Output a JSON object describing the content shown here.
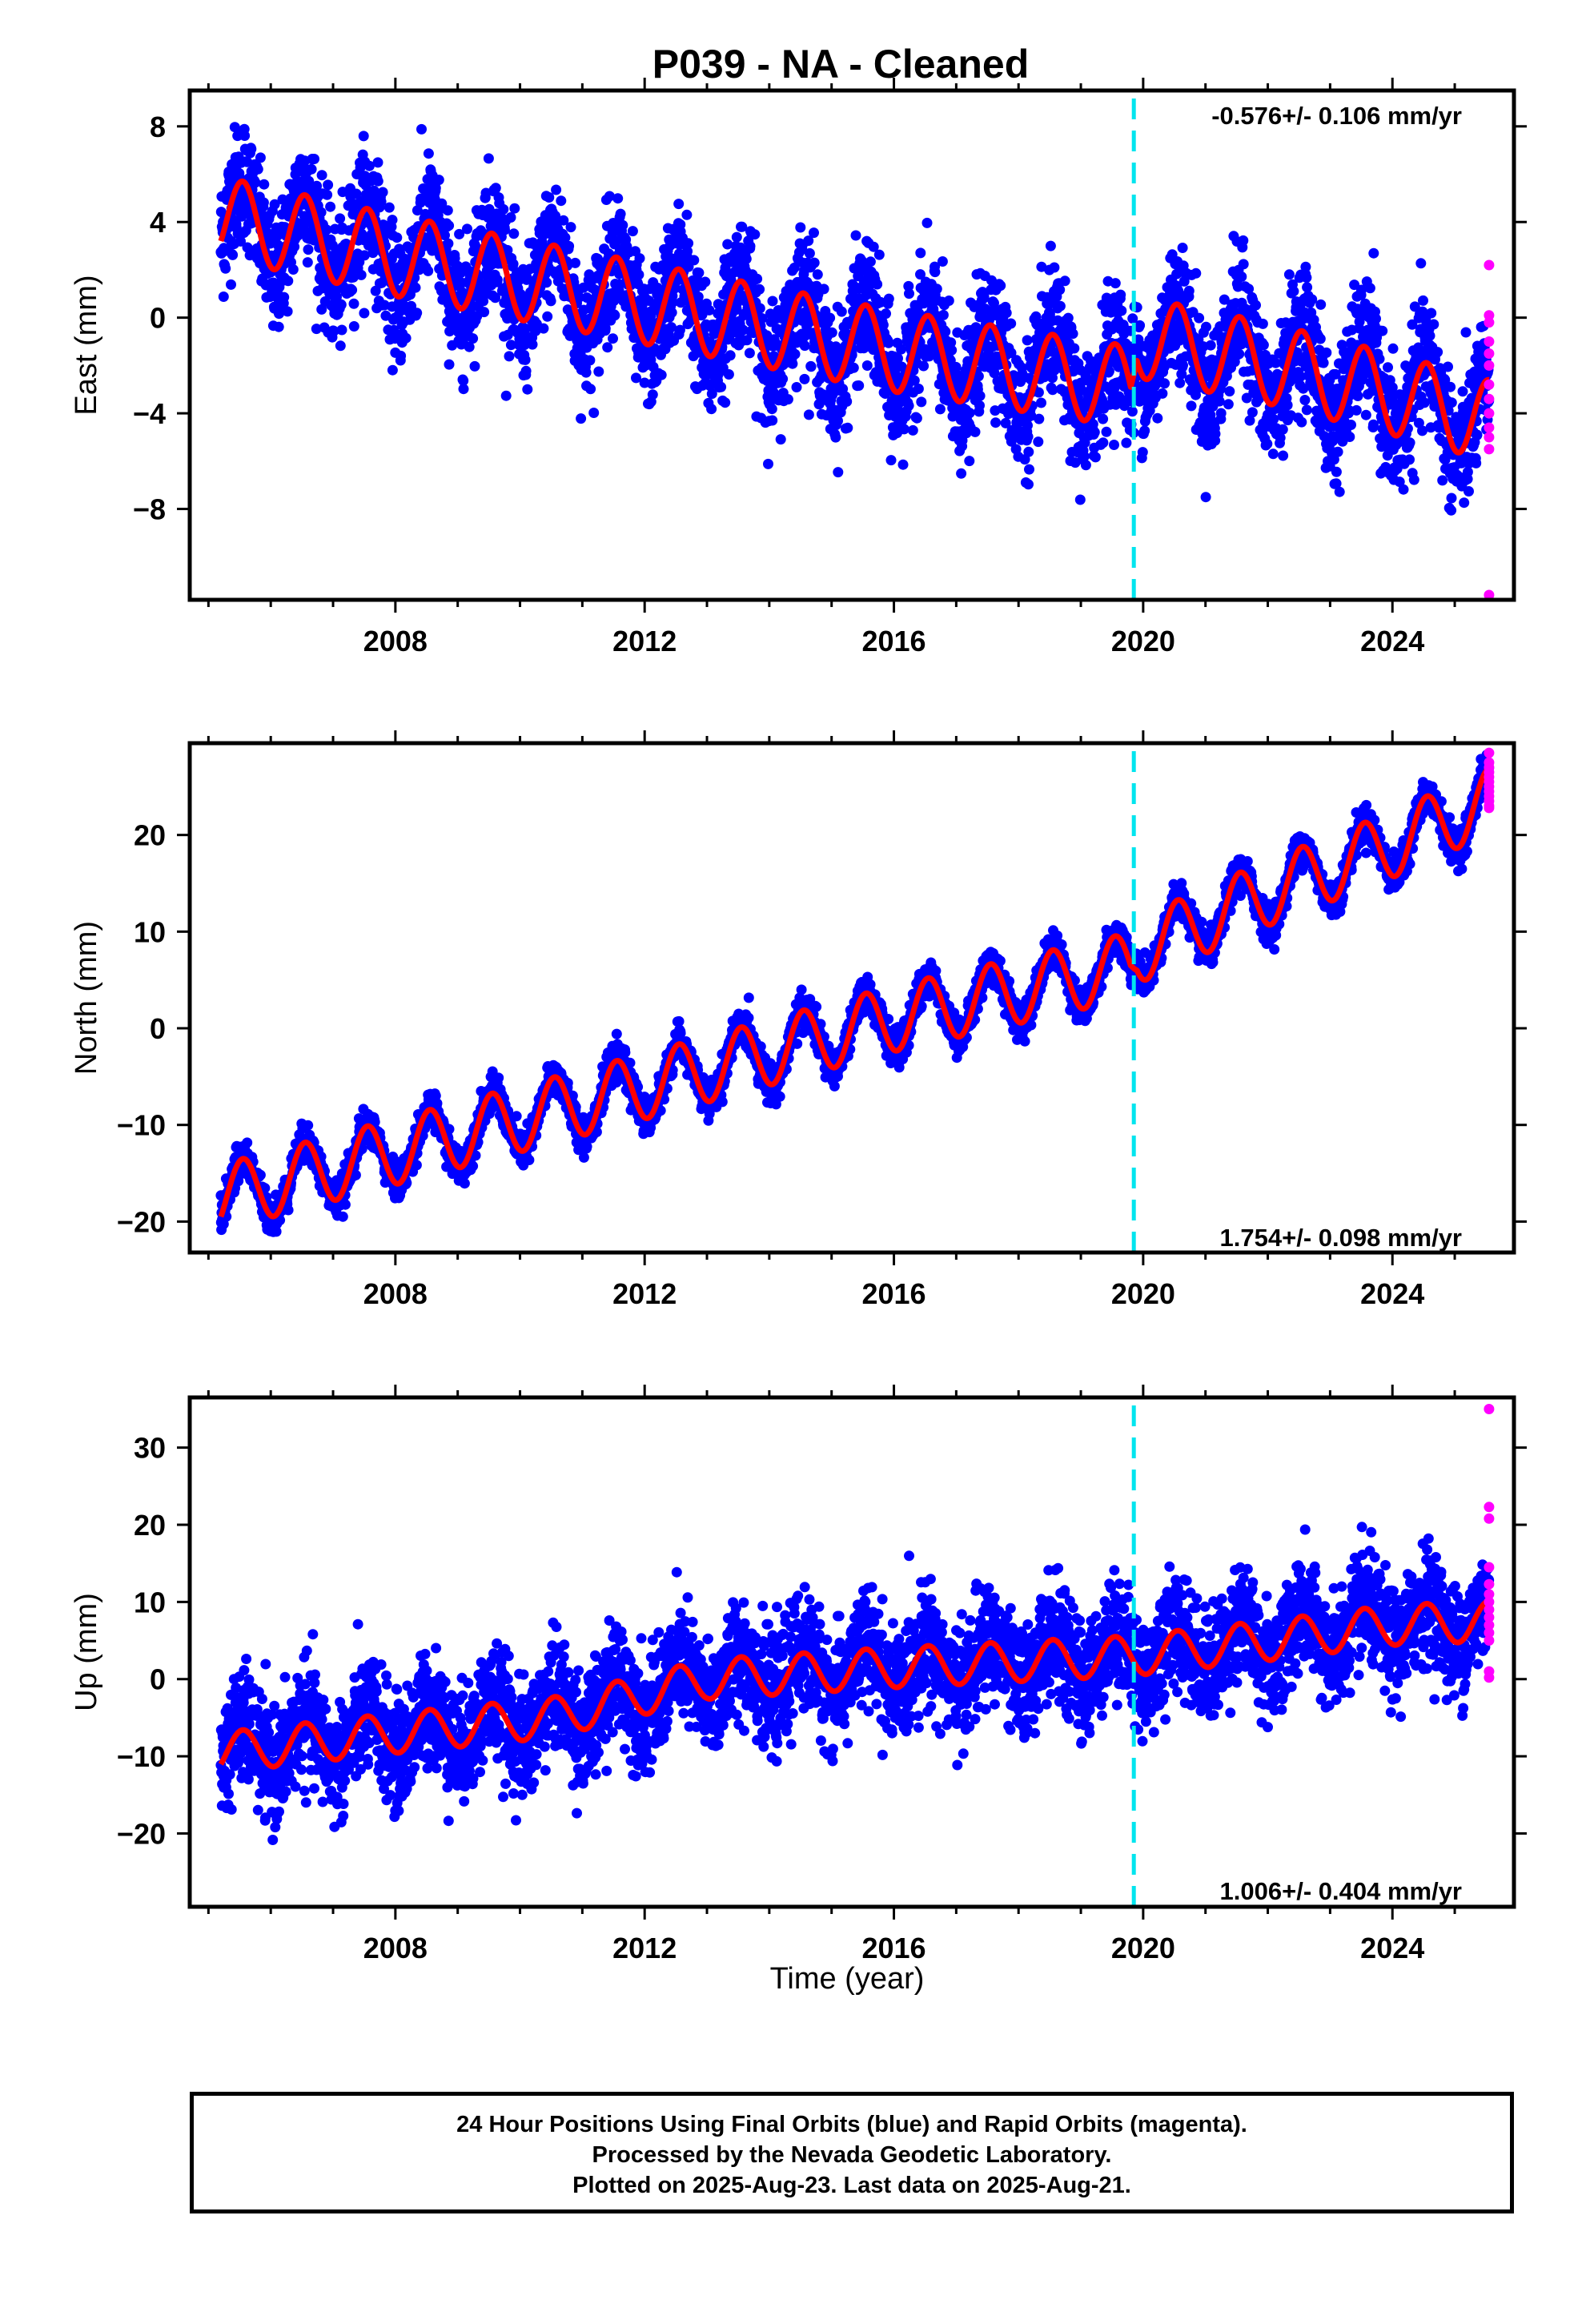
{
  "title": "P039  - NA - Cleaned",
  "xlabel": "Time (year)",
  "colors": {
    "final": "#0000ff",
    "rapid": "#ff00ff",
    "model": "#ff0000",
    "event": "#00e5ee",
    "frame": "#000000"
  },
  "footer": {
    "line1": "24 Hour Positions Using Final Orbits (blue) and Rapid Orbits (magenta).",
    "line2": "Processed by the Nevada Geodetic Laboratory.",
    "line3": "Plotted on 2025-Aug-23. Last data on 2025-Aug-21."
  },
  "chart_data": [
    {
      "type": "scatter",
      "component": "east",
      "ylabel": "East (mm)",
      "rate_label": "-0.576+/- 0.106 mm/yr",
      "rate_position": "top-right",
      "xlim": [
        2004.7,
        2025.95
      ],
      "ylim": [
        -11.8,
        9.5
      ],
      "x_ticks": [
        2008,
        2012,
        2016,
        2020,
        2024
      ],
      "y_ticks": [
        -8,
        -4,
        0,
        4,
        8
      ],
      "event_line_x": 2019.85,
      "series": [
        {
          "role": "final_orbits",
          "x_range": [
            2005.2,
            2025.55
          ],
          "trend": [
            [
              2005.2,
              4.2
            ],
            [
              2008,
              2.6
            ],
            [
              2012,
              0.6
            ],
            [
              2016,
              -1.4
            ],
            [
              2019.8,
              -2.9
            ],
            [
              2019.9,
              -0.8
            ],
            [
              2022,
              -1.9
            ],
            [
              2024,
              -3.2
            ],
            [
              2025.55,
              -4.3
            ]
          ],
          "seasonal_amplitude": 1.8,
          "scatter_sigma": 1.3
        },
        {
          "role": "rapid_orbits",
          "x": 2025.55,
          "y": [
            2.2,
            0.1,
            -0.2,
            -1.0,
            -1.5,
            -2.0,
            -2.8,
            -3.4,
            -4.0,
            -4.6,
            -5.0,
            -5.5,
            -11.6
          ]
        },
        {
          "role": "model_fit",
          "x_range": [
            2005.2,
            2025.55
          ],
          "seasonal_amplitude": 1.7
        }
      ]
    },
    {
      "type": "scatter",
      "component": "north",
      "ylabel": "North (mm)",
      "rate_label": "1.754+/- 0.098 mm/yr",
      "rate_position": "bottom-right",
      "xlim": [
        2004.7,
        2025.95
      ],
      "ylim": [
        -23.2,
        29.5
      ],
      "x_ticks": [
        2008,
        2012,
        2016,
        2020,
        2024
      ],
      "y_ticks": [
        -20,
        -10,
        0,
        10,
        20
      ],
      "event_line_x": 2019.85,
      "series": [
        {
          "role": "final_orbits",
          "x_range": [
            2005.2,
            2025.55
          ],
          "trend": [
            [
              2005.2,
              -17.5
            ],
            [
              2012,
              -6.0
            ],
            [
              2016,
              1.0
            ],
            [
              2019.8,
              6.5
            ],
            [
              2019.9,
              8.0
            ],
            [
              2022,
              14.0
            ],
            [
              2024,
              19.0
            ],
            [
              2025.55,
              23.5
            ]
          ],
          "seasonal_amplitude": 3.3,
          "scatter_sigma": 0.9
        },
        {
          "role": "rapid_orbits",
          "x": 2025.55,
          "y": [
            28.5,
            27.5,
            27.0,
            26.5,
            26.0,
            25.5,
            25.0,
            24.5,
            24.0,
            23.5,
            23.0,
            22.8
          ]
        },
        {
          "role": "model_fit",
          "x_range": [
            2005.2,
            2025.55
          ],
          "seasonal_amplitude": 3.4
        }
      ]
    },
    {
      "type": "scatter",
      "component": "up",
      "ylabel": "Up (mm)",
      "rate_label": "1.006+/- 0.404 mm/yr",
      "rate_position": "bottom-right",
      "xlim": [
        2004.7,
        2025.95
      ],
      "ylim": [
        -29.5,
        36.5
      ],
      "x_ticks": [
        2008,
        2012,
        2016,
        2020,
        2024
      ],
      "y_ticks": [
        -20,
        -10,
        0,
        10,
        20,
        30
      ],
      "event_line_x": 2019.85,
      "series": [
        {
          "role": "final_orbits",
          "x_range": [
            2005.2,
            2025.55
          ],
          "trend": [
            [
              2005.2,
              -9.5
            ],
            [
              2008,
              -7.0
            ],
            [
              2010.5,
              -5.0
            ],
            [
              2013,
              0.0
            ],
            [
              2016,
              1.5
            ],
            [
              2019.8,
              3.0
            ],
            [
              2022,
              5.0
            ],
            [
              2024,
              7.0
            ],
            [
              2025.55,
              7.5
            ]
          ],
          "seasonal_amplitude": 3.0,
          "scatter_sigma": 3.6
        },
        {
          "role": "rapid_orbits",
          "x": 2025.55,
          "y": [
            35.0,
            22.3,
            20.8,
            14.5,
            12.3,
            11.0,
            10.0,
            9.0,
            8.0,
            7.0,
            6.0,
            5.0,
            1.0,
            0.2
          ]
        },
        {
          "role": "model_fit",
          "x_range": [
            2005.2,
            2025.55
          ],
          "seasonal_amplitude": 2.6
        }
      ]
    }
  ]
}
